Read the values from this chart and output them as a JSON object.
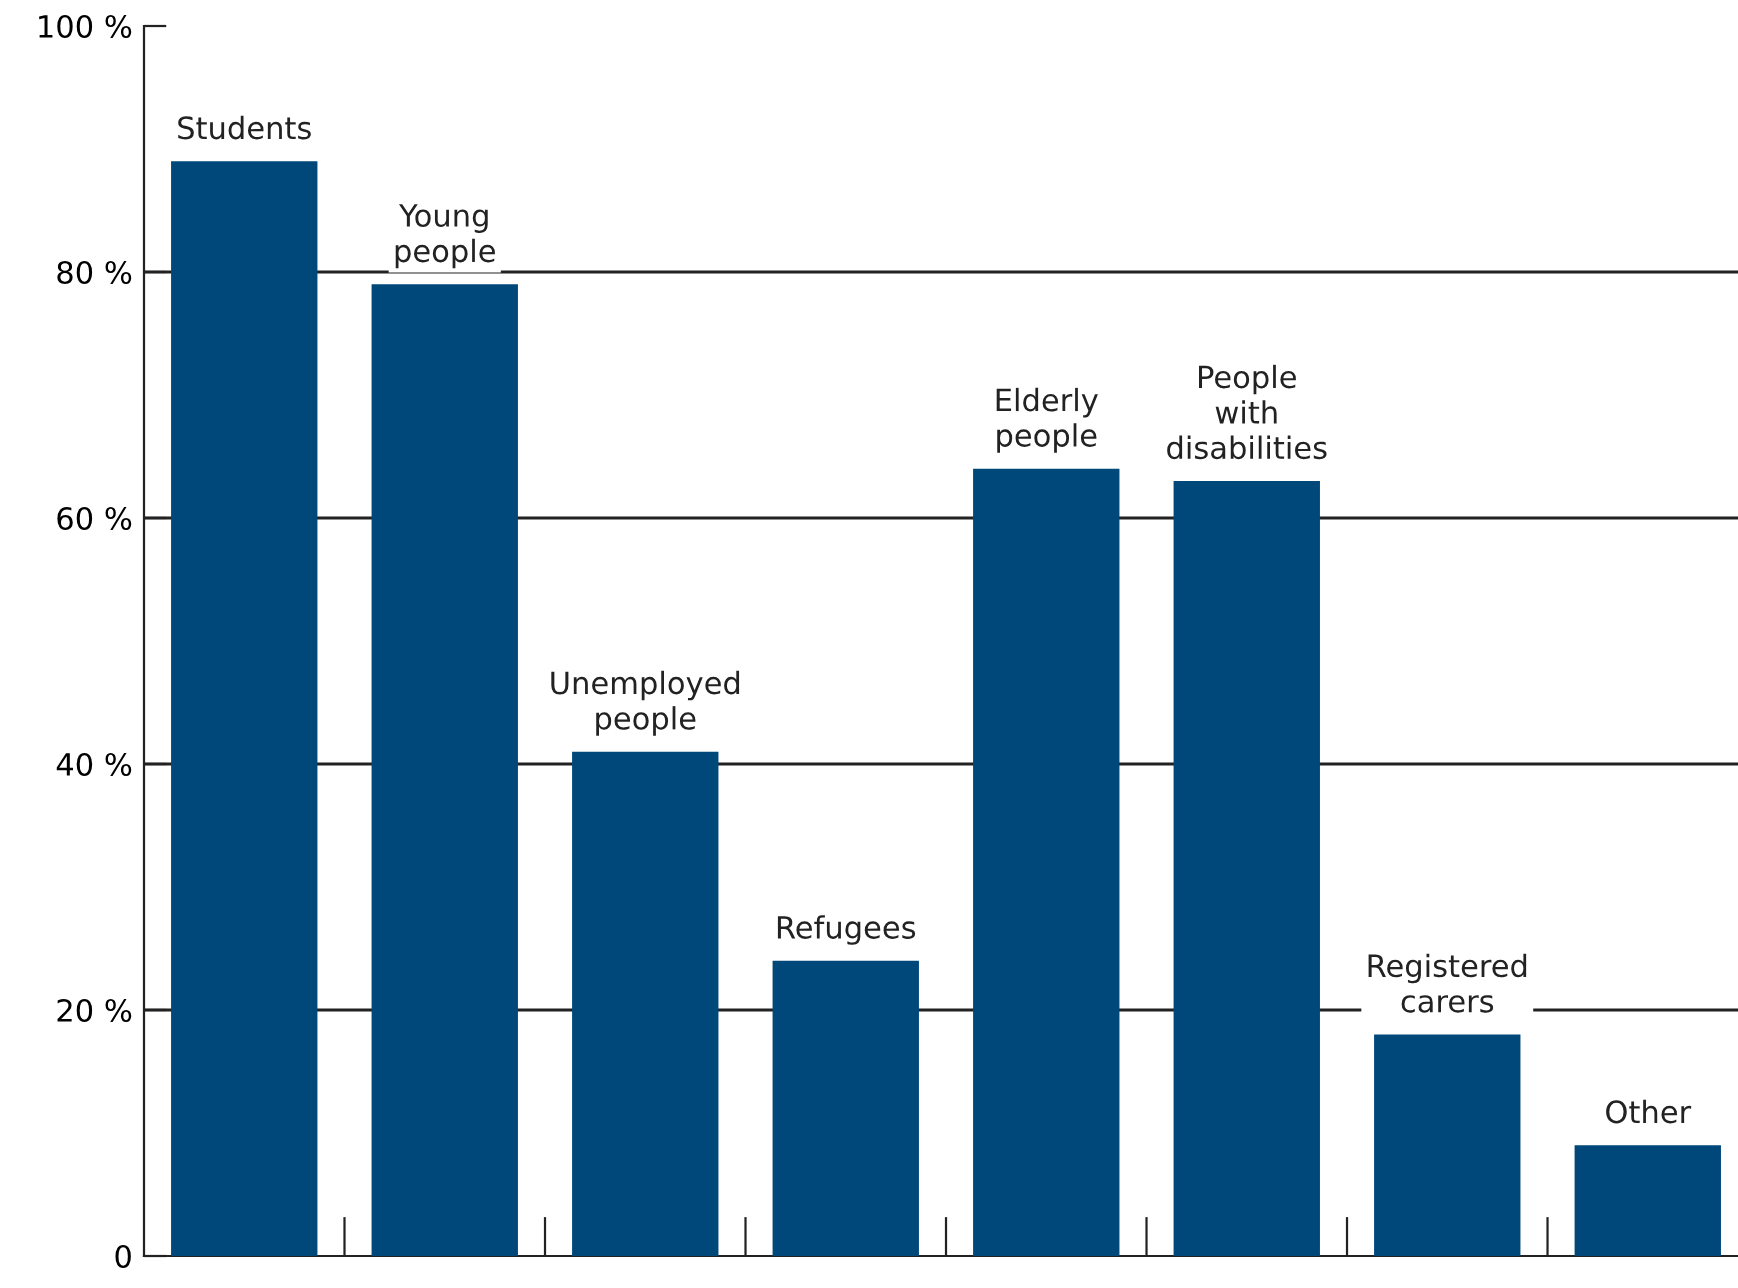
{
  "chart_data": {
    "type": "bar",
    "categories": [
      "Students",
      "Young\npeople",
      "Unemployed\npeople",
      "Refugees",
      "Elderly\npeople",
      "People\nwith\ndisabilities",
      "Registered\ncarers",
      "Other"
    ],
    "values": [
      89,
      79,
      41,
      24,
      64,
      63,
      18,
      9
    ],
    "color": "#00477a",
    "ylim": [
      0,
      100
    ],
    "yticks": [
      0,
      {
        "value": 20,
        "label": "20 %"
      },
      {
        "value": 40,
        "label": "40 %"
      },
      {
        "value": 60,
        "label": "60 %"
      },
      {
        "value": 80,
        "label": "80 %"
      },
      {
        "value": 100,
        "label": "100 %"
      }
    ],
    "grid": "y",
    "legend": false
  }
}
